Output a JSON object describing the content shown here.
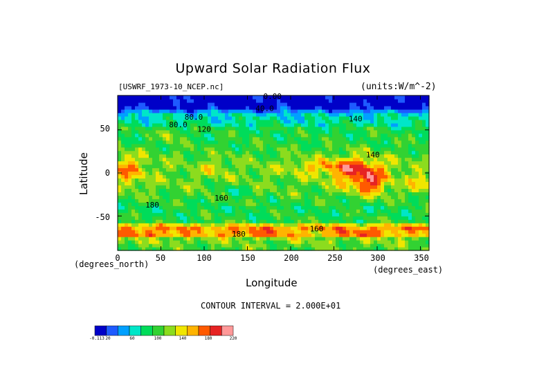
{
  "chart_data": {
    "type": "heatmap",
    "title": "Upward Solar Radiation Flux",
    "file_label": "[USWRF_1973-10_NCEP.nc]",
    "units_label": "(units:W/m^-2)",
    "xlabel": "Longitude",
    "ylabel": "Latitude",
    "x_unit_label": "(degrees_east)",
    "y_unit_label": "(degrees_north)",
    "xlim": [
      0,
      360
    ],
    "ylim": [
      -90,
      90
    ],
    "x_ticks": [
      "0",
      "50",
      "100",
      "150",
      "200",
      "250",
      "300",
      "350"
    ],
    "y_ticks": [
      "50",
      "0",
      "-50"
    ],
    "contour_interval_text": "CONTOUR INTERVAL = 2.000E+01",
    "contour_labels": [
      "0.00",
      "40.0",
      "80.0",
      "80.0",
      "120",
      "140",
      "140",
      "180",
      "160",
      "160",
      "180"
    ],
    "levels": [
      -0.113,
      20,
      40,
      60,
      80,
      100,
      120,
      140,
      160,
      180,
      200,
      220
    ],
    "colorbar_labels": [
      "-0.113",
      "20",
      "60",
      "100",
      "140",
      "180",
      "220"
    ],
    "colors": [
      "#0000c8",
      "#1e5aff",
      "#00a0ff",
      "#00e6c8",
      "#00dc5a",
      "#32d232",
      "#8cdc1e",
      "#f0e600",
      "#ffb400",
      "#ff5a00",
      "#e62323",
      "#ff9999"
    ],
    "grid": false
  }
}
